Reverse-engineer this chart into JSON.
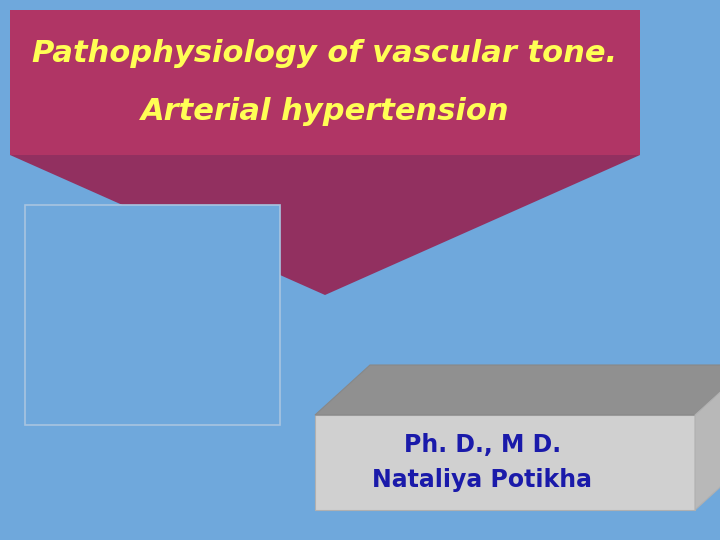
{
  "background_color": "#6fa8dc",
  "title_line1": "Pathophysiology of vascular tone.",
  "title_line2": "Arterial hypertension",
  "title_color": "#ffff55",
  "title_bg_color": "#b03565",
  "title_fontsize": 22,
  "arrow_color": "#923060",
  "left_rect_edge": "#a8c4e0",
  "box_3d_face_color": "#d0d0d0",
  "box_3d_top_color": "#909090",
  "box_3d_right_color": "#b8b8b8",
  "author_line1": "Ph. D., M D.",
  "author_line2": "Nataliya Potikha",
  "author_color": "#1a1aaa",
  "author_fontsize": 17
}
